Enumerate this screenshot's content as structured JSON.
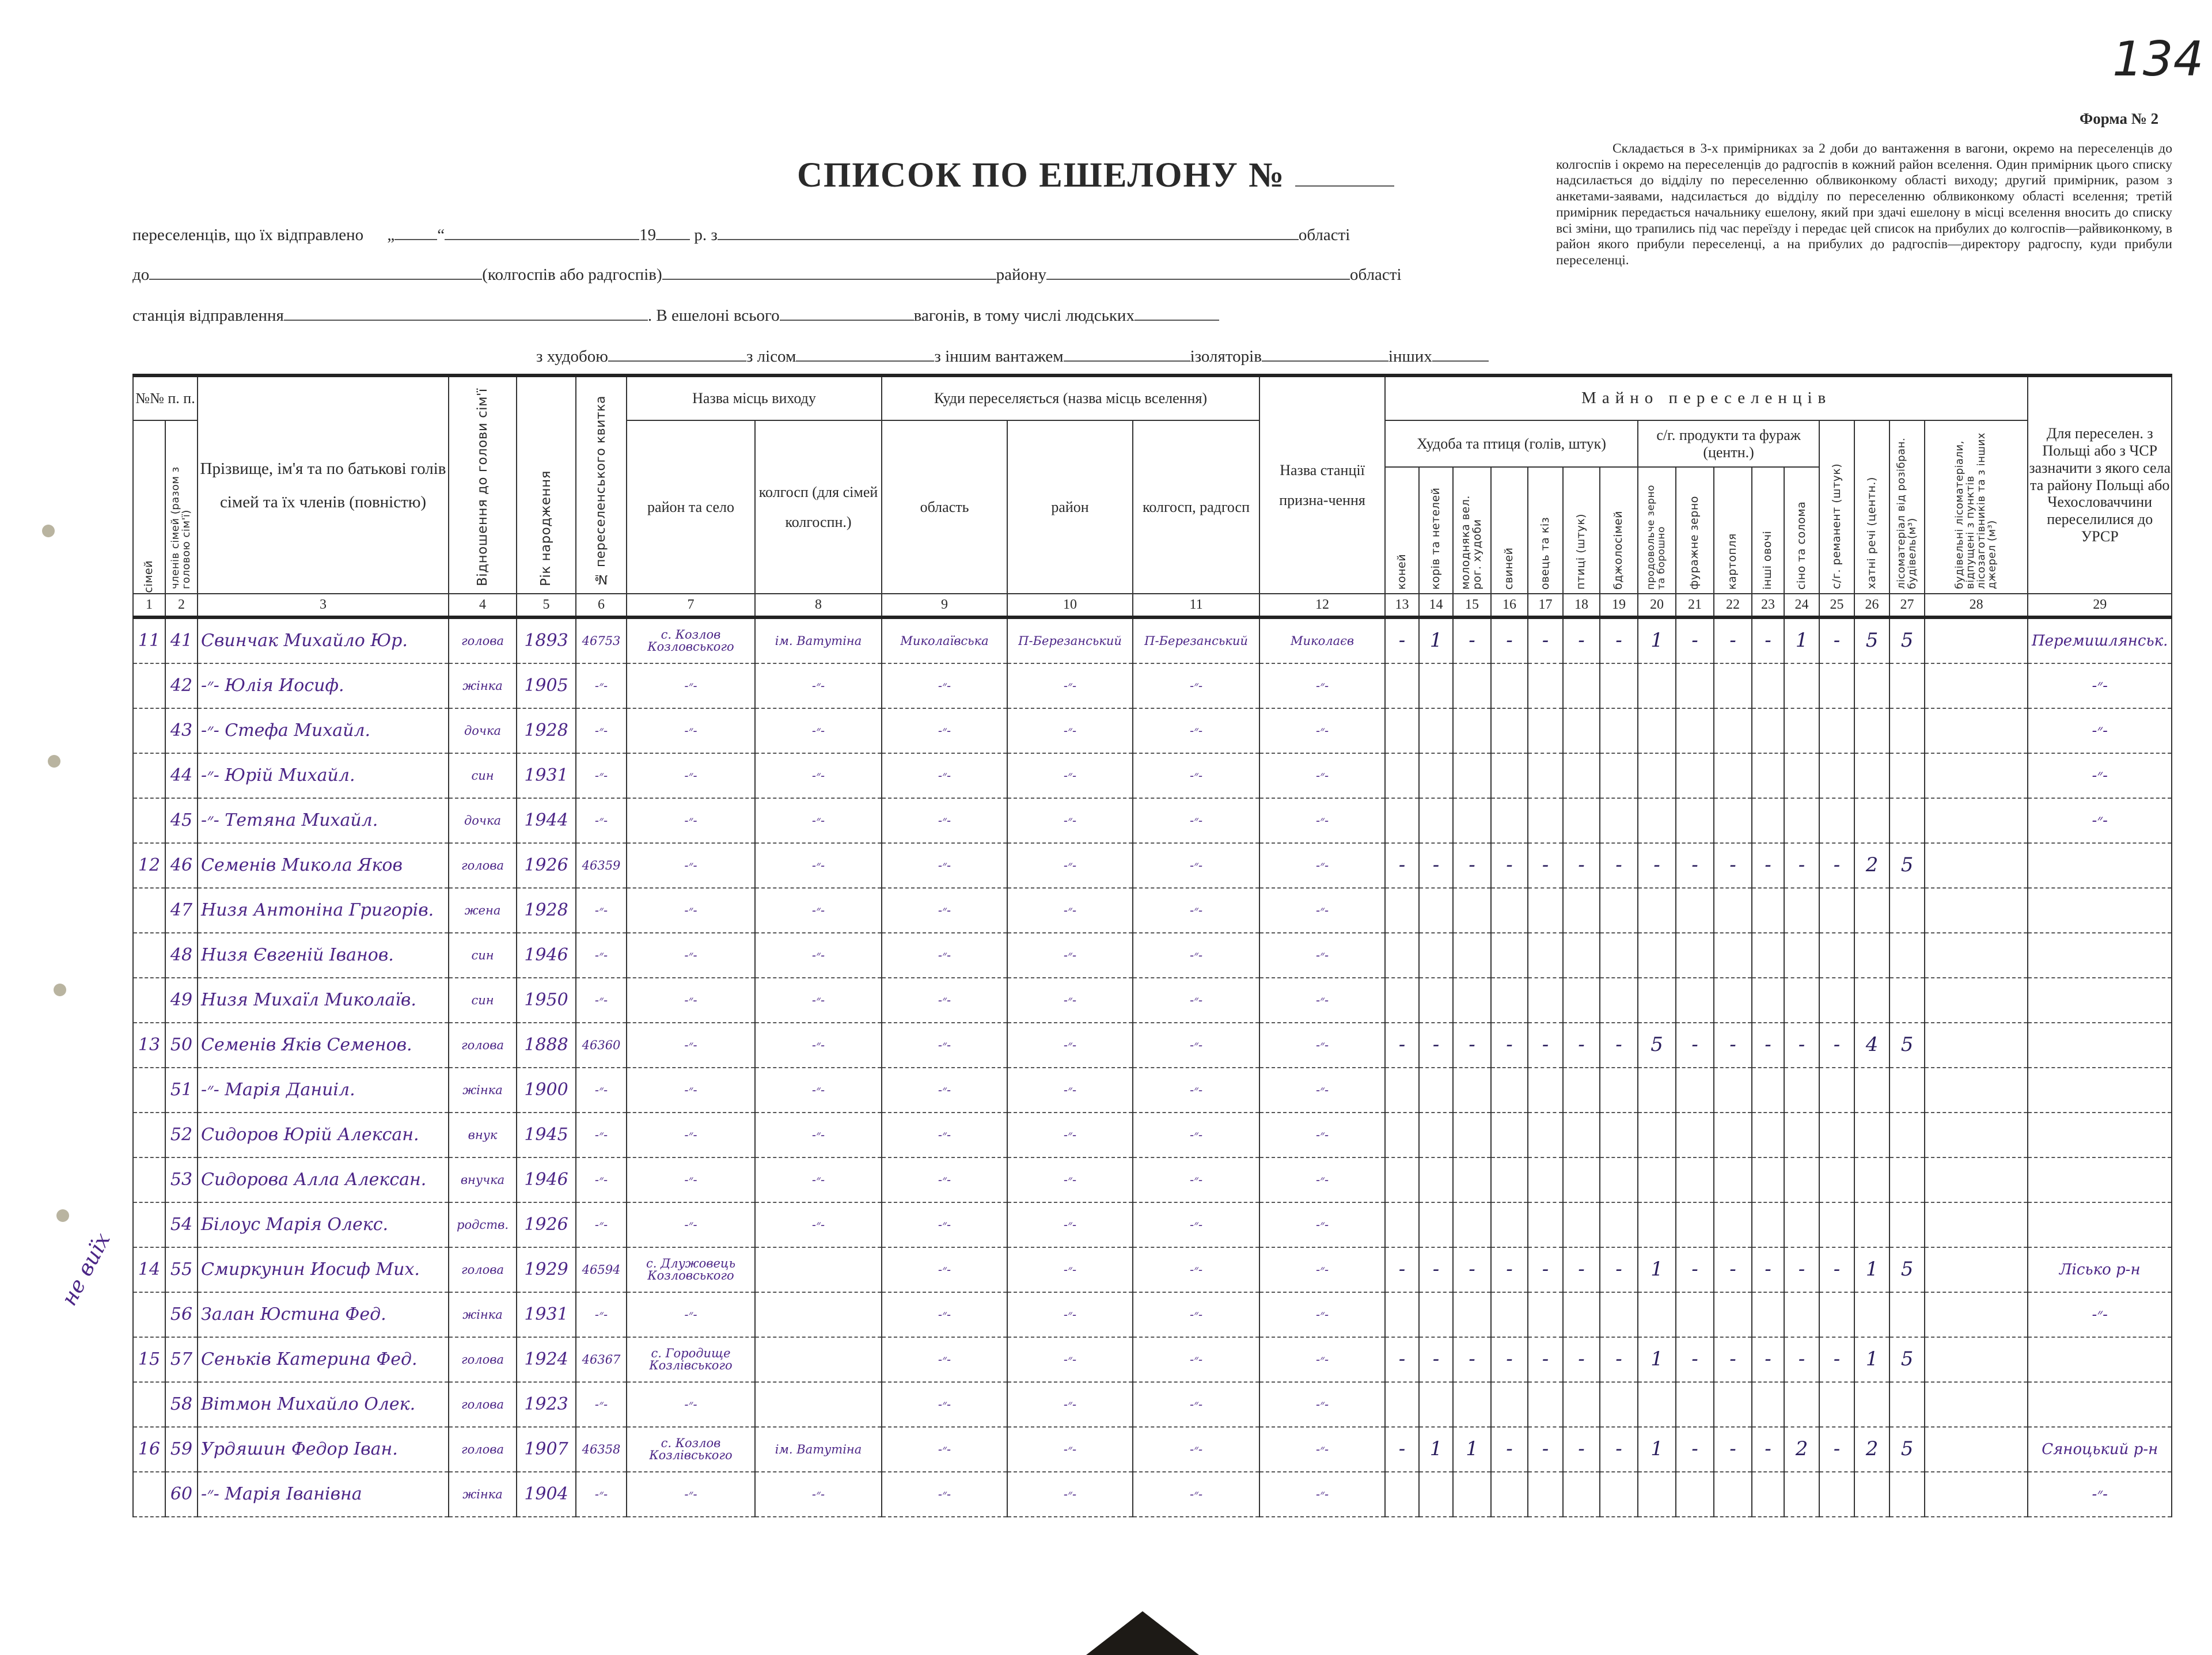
{
  "page_number": "134",
  "form_label": "Форма № 2",
  "title": "СПИСОК ПО ЕШЕЛОНУ №",
  "note": "Складається в 3-х примірниках за 2 доби до вантаження в вагони, окремо на переселенців до колгоспів і окремо на переселенців до радгоспів в кожний район вселення. Один примірник цього списку надсилається до відділу по переселенню облвиконкому області виходу; другий примірник, разом з анкетами-заявами, надсилається до відділу по переселенню облвиконкому області вселення; третій примірник передається начальнику ешелону, який при здачі ешелону в місці вселення вносить до списку всі зміни, що трапились під час переїзду і передає цей список на прибулих до колгоспів—райвиконкому, в район якого прибули переселенці, а на прибулих до радгоспів—директору радгоспу, куди прибули переселенці.",
  "form_lines": {
    "l1_a": "переселенців, що їх відправлено",
    "l1_quote": "„",
    "l1_quote2": "“",
    "l1_year": "19",
    "l1_r": "р. з",
    "l1_oblast": "області",
    "l2_do": "до",
    "l2_kolhosp": "(колгоспів або радгоспів)",
    "l2_raion": "району",
    "l2_oblast": "області",
    "l3_station": "станція відправлення",
    "l3_echelon": ". В ешелоні всього",
    "l3_wagons": "вагонів, в тому числі людських",
    "l4_cattle": "з худобою",
    "l4_timber": "з лісом",
    "l4_other_cargo": "з іншим вантажем",
    "l4_isolators": "ізоляторів",
    "l4_other": "інших"
  },
  "headers": {
    "nn": "№№ п. п.",
    "families": "сімей",
    "members": "членів сімей (разом з головою сім'ї)",
    "name": "Прізвище, ім'я та по батькові голів сімей та їх членів (повністю)",
    "relation": "Відношення до голови сім'ї",
    "birth_year": "Рік народження",
    "ticket": "№ переселенського квитка",
    "origin": "Назва місць виходу",
    "origin_raion": "район та село",
    "origin_kolhosp": "колгосп (для сімей колгоспн.)",
    "dest": "Куди переселяється (назва місць вселення)",
    "dest_oblast": "область",
    "dest_raion": "район",
    "dest_kolhosp": "колгосп, радгосп",
    "station": "Назва станції призна-чення",
    "property": "Майно переселенців",
    "livestock": "Худоба та птиця (голів, штук)",
    "horses": "коней",
    "cows": "корів та нетелей",
    "young_cattle": "молодняка вел. рог. худоби",
    "pigs": "свиней",
    "sheep_goats": "овець та кіз",
    "poultry": "птиці (штук)",
    "bee_families": "бджолосімей",
    "produce": "с/г. продукти та фураж (центн.)",
    "food_grain": "продовольче зерно та борошно",
    "fodder_grain": "фуражне зерно",
    "potatoes": "картопля",
    "vegetables": "інші овочі",
    "hay_straw": "сіно та солома",
    "inventory": "с/г. реманент (штук)",
    "household": "хатні речі (центн.)",
    "timber_dismantled": "лісоматеріал від розібран. будівель(м³)",
    "building_materials": "будівельні лісоматеріали, відпущені з пунктів лісозаготівників та з інших джерел (м³)",
    "poland": "Для переселен. з Польщі або з ЧСР зазначити з якого села та району Польщі або Чехословаччини переселилися до УРСР"
  },
  "column_numbers": [
    "1",
    "2",
    "3",
    "4",
    "5",
    "6",
    "7",
    "8",
    "9",
    "10",
    "11",
    "12",
    "13",
    "14",
    "15",
    "16",
    "17",
    "18",
    "19",
    "20",
    "21",
    "22",
    "23",
    "24",
    "25",
    "26",
    "27",
    "28",
    "29"
  ],
  "margin_note": "не виїх",
  "ink_color": "#4b2586",
  "rows": [
    {
      "family": "11",
      "member": "41",
      "name": "Свинчак Михайло Юр.",
      "relation": "голова",
      "year": "1893",
      "ticket": "46753",
      "origin_village": "с. Козлов Козловського",
      "origin_kolhosp": "ім. Ватутіна",
      "dest_oblast": "Миколаївська",
      "dest_raion": "П-Березанський",
      "dest_kolhosp": "П-Березанський",
      "station": "Миколаєв",
      "property": [
        "-",
        "1",
        "-",
        "-",
        "-",
        "-",
        "-",
        "1",
        "-",
        "-",
        "-",
        "1",
        "-",
        "5",
        "5",
        ""
      ],
      "poland": "Перемишлянськ."
    },
    {
      "family": "",
      "member": "42",
      "name": "-״- Юлія Иосиф.",
      "relation": "жінка",
      "year": "1905",
      "ticket": "-״-",
      "origin_village": "-״-",
      "origin_kolhosp": "-״-",
      "dest_oblast": "-״-",
      "dest_raion": "-״-",
      "dest_kolhosp": "-״-",
      "station": "-״-",
      "property": [
        "",
        "",
        "",
        "",
        "",
        "",
        "",
        "",
        "",
        "",
        "",
        "",
        "",
        "",
        "",
        ""
      ],
      "poland": "-״-"
    },
    {
      "family": "",
      "member": "43",
      "name": "-״- Стефа Михайл.",
      "relation": "дочка",
      "year": "1928",
      "ticket": "-״-",
      "origin_village": "-״-",
      "origin_kolhosp": "-״-",
      "dest_oblast": "-״-",
      "dest_raion": "-״-",
      "dest_kolhosp": "-״-",
      "station": "-״-",
      "property": [
        "",
        "",
        "",
        "",
        "",
        "",
        "",
        "",
        "",
        "",
        "",
        "",
        "",
        "",
        "",
        ""
      ],
      "poland": "-״-"
    },
    {
      "family": "",
      "member": "44",
      "name": "-״- Юрій Михайл.",
      "relation": "син",
      "year": "1931",
      "ticket": "-״-",
      "origin_village": "-״-",
      "origin_kolhosp": "-״-",
      "dest_oblast": "-״-",
      "dest_raion": "-״-",
      "dest_kolhosp": "-״-",
      "station": "-״-",
      "property": [
        "",
        "",
        "",
        "",
        "",
        "",
        "",
        "",
        "",
        "",
        "",
        "",
        "",
        "",
        "",
        ""
      ],
      "poland": "-״-"
    },
    {
      "family": "",
      "member": "45",
      "name": "-״- Тетяна Михайл.",
      "relation": "дочка",
      "year": "1944",
      "ticket": "-״-",
      "origin_village": "-״-",
      "origin_kolhosp": "-״-",
      "dest_oblast": "-״-",
      "dest_raion": "-״-",
      "dest_kolhosp": "-״-",
      "station": "-״-",
      "property": [
        "",
        "",
        "",
        "",
        "",
        "",
        "",
        "",
        "",
        "",
        "",
        "",
        "",
        "",
        "",
        ""
      ],
      "poland": "-״-"
    },
    {
      "family": "12",
      "member": "46",
      "name": "Семенів Микола Яков",
      "relation": "голова",
      "year": "1926",
      "ticket": "46359",
      "origin_village": "-״-",
      "origin_kolhosp": "-״-",
      "dest_oblast": "-״-",
      "dest_raion": "-״-",
      "dest_kolhosp": "-״-",
      "station": "-״-",
      "property": [
        "-",
        "-",
        "-",
        "-",
        "-",
        "-",
        "-",
        "-",
        "-",
        "-",
        "-",
        "-",
        "-",
        "2",
        "5",
        ""
      ],
      "poland": ""
    },
    {
      "family": "",
      "member": "47",
      "name": "Низя Антоніна Григорів.",
      "relation": "жена",
      "year": "1928",
      "ticket": "-״-",
      "origin_village": "-״-",
      "origin_kolhosp": "-״-",
      "dest_oblast": "-״-",
      "dest_raion": "-״-",
      "dest_kolhosp": "-״-",
      "station": "-״-",
      "property": [
        "",
        "",
        "",
        "",
        "",
        "",
        "",
        "",
        "",
        "",
        "",
        "",
        "",
        "",
        "",
        ""
      ],
      "poland": ""
    },
    {
      "family": "",
      "member": "48",
      "name": "Низя Євгеній Іванов.",
      "relation": "син",
      "year": "1946",
      "ticket": "-״-",
      "origin_village": "-״-",
      "origin_kolhosp": "-״-",
      "dest_oblast": "-״-",
      "dest_raion": "-״-",
      "dest_kolhosp": "-״-",
      "station": "-״-",
      "property": [
        "",
        "",
        "",
        "",
        "",
        "",
        "",
        "",
        "",
        "",
        "",
        "",
        "",
        "",
        "",
        ""
      ],
      "poland": ""
    },
    {
      "family": "",
      "member": "49",
      "name": "Низя Михаїл Миколаїв.",
      "relation": "син",
      "year": "1950",
      "ticket": "-״-",
      "origin_village": "-״-",
      "origin_kolhosp": "-״-",
      "dest_oblast": "-״-",
      "dest_raion": "-״-",
      "dest_kolhosp": "-״-",
      "station": "-״-",
      "property": [
        "",
        "",
        "",
        "",
        "",
        "",
        "",
        "",
        "",
        "",
        "",
        "",
        "",
        "",
        "",
        ""
      ],
      "poland": ""
    },
    {
      "family": "13",
      "member": "50",
      "name": "Семенів Яків Семенов.",
      "relation": "голова",
      "year": "1888",
      "ticket": "46360",
      "origin_village": "-״-",
      "origin_kolhosp": "-״-",
      "dest_oblast": "-״-",
      "dest_raion": "-״-",
      "dest_kolhosp": "-״-",
      "station": "-״-",
      "property": [
        "-",
        "-",
        "-",
        "-",
        "-",
        "-",
        "-",
        "5",
        "-",
        "-",
        "-",
        "-",
        "-",
        "4",
        "5",
        ""
      ],
      "poland": ""
    },
    {
      "family": "",
      "member": "51",
      "name": "-״- Марія Даниіл.",
      "relation": "жінка",
      "year": "1900",
      "ticket": "-״-",
      "origin_village": "-״-",
      "origin_kolhosp": "-״-",
      "dest_oblast": "-״-",
      "dest_raion": "-״-",
      "dest_kolhosp": "-״-",
      "station": "-״-",
      "property": [
        "",
        "",
        "",
        "",
        "",
        "",
        "",
        "",
        "",
        "",
        "",
        "",
        "",
        "",
        "",
        ""
      ],
      "poland": ""
    },
    {
      "family": "",
      "member": "52",
      "name": "Сидоров Юрій Алексан.",
      "relation": "внук",
      "year": "1945",
      "ticket": "-״-",
      "origin_village": "-״-",
      "origin_kolhosp": "-״-",
      "dest_oblast": "-״-",
      "dest_raion": "-״-",
      "dest_kolhosp": "-״-",
      "station": "-״-",
      "property": [
        "",
        "",
        "",
        "",
        "",
        "",
        "",
        "",
        "",
        "",
        "",
        "",
        "",
        "",
        "",
        ""
      ],
      "poland": ""
    },
    {
      "family": "",
      "member": "53",
      "name": "Сидорова Алла Алексан.",
      "relation": "внучка",
      "year": "1946",
      "ticket": "-״-",
      "origin_village": "-״-",
      "origin_kolhosp": "-״-",
      "dest_oblast": "-״-",
      "dest_raion": "-״-",
      "dest_kolhosp": "-״-",
      "station": "-״-",
      "property": [
        "",
        "",
        "",
        "",
        "",
        "",
        "",
        "",
        "",
        "",
        "",
        "",
        "",
        "",
        "",
        ""
      ],
      "poland": ""
    },
    {
      "family": "",
      "member": "54",
      "name": "Білоус Марія Олекс.",
      "relation": "родств.",
      "year": "1926",
      "ticket": "-״-",
      "origin_village": "-״-",
      "origin_kolhosp": "-״-",
      "dest_oblast": "-״-",
      "dest_raion": "-״-",
      "dest_kolhosp": "-״-",
      "station": "-״-",
      "property": [
        "",
        "",
        "",
        "",
        "",
        "",
        "",
        "",
        "",
        "",
        "",
        "",
        "",
        "",
        "",
        ""
      ],
      "poland": ""
    },
    {
      "family": "14",
      "member": "55",
      "name": "Смиркунин Иосиф Мих.",
      "relation": "голова",
      "year": "1929",
      "ticket": "46594",
      "origin_village": "с. Длужовець Козловського",
      "origin_kolhosp": "",
      "dest_oblast": "-״-",
      "dest_raion": "-״-",
      "dest_kolhosp": "-״-",
      "station": "-״-",
      "property": [
        "-",
        "-",
        "-",
        "-",
        "-",
        "-",
        "-",
        "1",
        "-",
        "-",
        "-",
        "-",
        "-",
        "1",
        "5",
        ""
      ],
      "poland": "Лісько р-н"
    },
    {
      "family": "",
      "member": "56",
      "name": "Залан Юстина Фед.",
      "relation": "жінка",
      "year": "1931",
      "ticket": "-״-",
      "origin_village": "-״-",
      "origin_kolhosp": "",
      "dest_oblast": "-״-",
      "dest_raion": "-״-",
      "dest_kolhosp": "-״-",
      "station": "-״-",
      "property": [
        "",
        "",
        "",
        "",
        "",
        "",
        "",
        "",
        "",
        "",
        "",
        "",
        "",
        "",
        "",
        ""
      ],
      "poland": "-״-"
    },
    {
      "family": "15",
      "member": "57",
      "name": "Сеньків Катерина Фед.",
      "relation": "голова",
      "year": "1924",
      "ticket": "46367",
      "origin_village": "с. Городище Козлівського",
      "origin_kolhosp": "",
      "dest_oblast": "-״-",
      "dest_raion": "-״-",
      "dest_kolhosp": "-״-",
      "station": "-״-",
      "property": [
        "-",
        "-",
        "-",
        "-",
        "-",
        "-",
        "-",
        "1",
        "-",
        "-",
        "-",
        "-",
        "-",
        "1",
        "5",
        ""
      ],
      "poland": ""
    },
    {
      "family": "",
      "member": "58",
      "name": "Вітмон Михайло Олек.",
      "relation": "голова",
      "year": "1923",
      "ticket": "-״-",
      "origin_village": "-״-",
      "origin_kolhosp": "",
      "dest_oblast": "-״-",
      "dest_raion": "-״-",
      "dest_kolhosp": "-״-",
      "station": "-״-",
      "property": [
        "",
        "",
        "",
        "",
        "",
        "",
        "",
        "",
        "",
        "",
        "",
        "",
        "",
        "",
        "",
        ""
      ],
      "poland": ""
    },
    {
      "family": "16",
      "member": "59",
      "name": "Урдяшин Федор Іван.",
      "relation": "голова",
      "year": "1907",
      "ticket": "46358",
      "origin_village": "с. Козлов Козлівського",
      "origin_kolhosp": "ім. Ватутіна",
      "dest_oblast": "-״-",
      "dest_raion": "-״-",
      "dest_kolhosp": "-״-",
      "station": "-״-",
      "property": [
        "-",
        "1",
        "1",
        "-",
        "-",
        "-",
        "-",
        "1",
        "-",
        "-",
        "-",
        "2",
        "-",
        "2",
        "5",
        ""
      ],
      "poland": "Сяноцький р-н"
    },
    {
      "family": "",
      "member": "60",
      "name": "-״- Марія Іванівна",
      "relation": "жінка",
      "year": "1904",
      "ticket": "-״-",
      "origin_village": "-״-",
      "origin_kolhosp": "-״-",
      "dest_oblast": "-״-",
      "dest_raion": "-״-",
      "dest_kolhosp": "-״-",
      "station": "-״-",
      "property": [
        "",
        "",
        "",
        "",
        "",
        "",
        "",
        "",
        "",
        "",
        "",
        "",
        "",
        "",
        "",
        ""
      ],
      "poland": "-״-"
    }
  ]
}
